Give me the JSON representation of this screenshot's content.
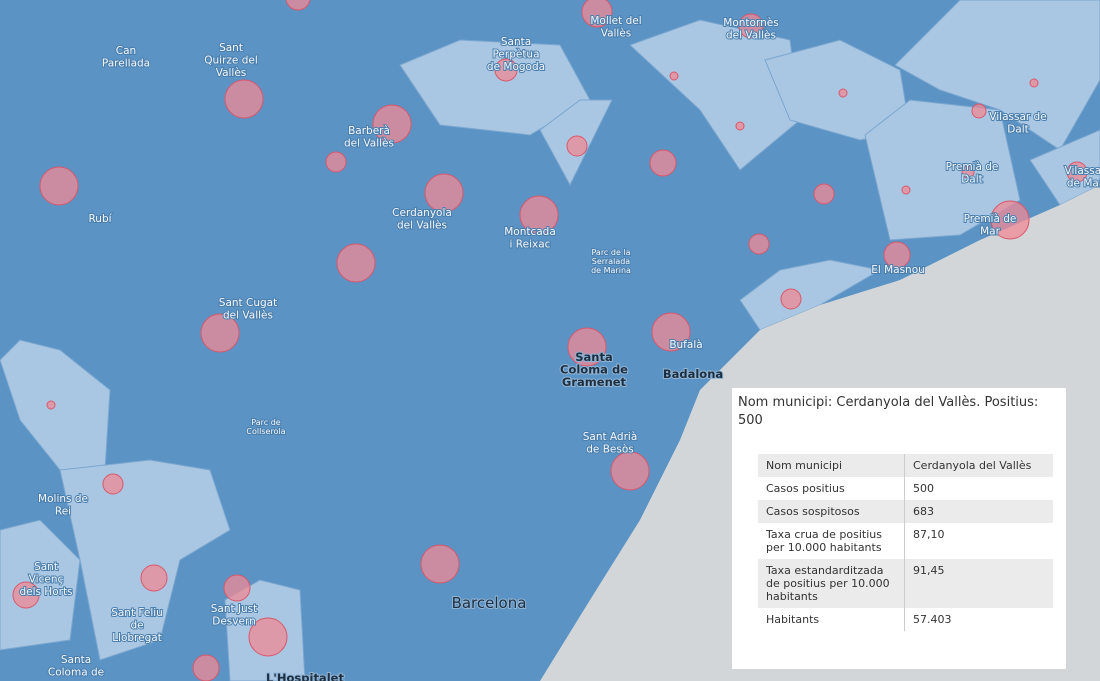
{
  "map": {
    "labels": [
      {
        "lines": [
          "Mollet del",
          "Vallès"
        ]
      },
      {
        "lines": [
          "Montornès",
          "del Vallès"
        ]
      },
      {
        "lines": [
          "Can",
          "Parellada"
        ]
      },
      {
        "lines": [
          "Sant",
          "Quirze del",
          "Vallès"
        ]
      },
      {
        "lines": [
          "Santa",
          "Perpètua",
          "de Mogoda"
        ]
      },
      {
        "lines": [
          "Vilassar de",
          "Dalt"
        ]
      },
      {
        "lines": [
          "Barberà",
          "del Vallès"
        ]
      },
      {
        "lines": [
          "Premià de",
          "Dalt"
        ]
      },
      {
        "lines": [
          "Vilassar",
          "de Mar"
        ]
      },
      {
        "lines": [
          "Rubí"
        ]
      },
      {
        "lines": [
          "Cerdanyola",
          "del Vallès"
        ]
      },
      {
        "lines": [
          "Montcada",
          "i Reixac"
        ]
      },
      {
        "lines": [
          "Premià de",
          "Mar"
        ]
      },
      {
        "lines": [
          "Parc de la",
          "Serralada",
          "de Marina"
        ]
      },
      {
        "lines": [
          "El Masnou"
        ]
      },
      {
        "lines": [
          "Sant Cugat",
          "del Vallès"
        ]
      },
      {
        "lines": [
          "Bufalà"
        ]
      },
      {
        "lines": [
          "Santa",
          "Coloma de",
          "Gramenet"
        ]
      },
      {
        "lines": [
          "Badalona"
        ]
      },
      {
        "lines": [
          "Parc de",
          "Collserola"
        ]
      },
      {
        "lines": [
          "Sant Adrià",
          "de Besòs"
        ]
      },
      {
        "lines": [
          "Molins de",
          "Rei"
        ]
      },
      {
        "lines": [
          "Sant",
          "Vicenç",
          "dels Horts"
        ]
      },
      {
        "lines": [
          "Sant Feliu",
          "de",
          "Llobregat"
        ]
      },
      {
        "lines": [
          "Sant Just",
          "Desvern"
        ]
      },
      {
        "lines": [
          "Barcelona"
        ]
      },
      {
        "lines": [
          "Santa",
          "Coloma de"
        ]
      },
      {
        "lines": [
          "L'Hospitalet"
        ]
      }
    ]
  },
  "popup": {
    "title": "Nom municipi: Cerdanyola del Vallès. Positius: 500",
    "table": {
      "rows": [
        [
          "Nom municipi",
          "Cerdanyola del Vallès"
        ],
        [
          "Casos positius",
          "500"
        ],
        [
          "Casos sospitosos",
          "683"
        ],
        [
          "Taxa crua de positius per 10.000 habitants",
          "87,10"
        ],
        [
          "Taxa estandarditzada de positius per 10.000 habitants",
          "91,45"
        ],
        [
          "Habitants",
          "57.403"
        ]
      ]
    }
  }
}
